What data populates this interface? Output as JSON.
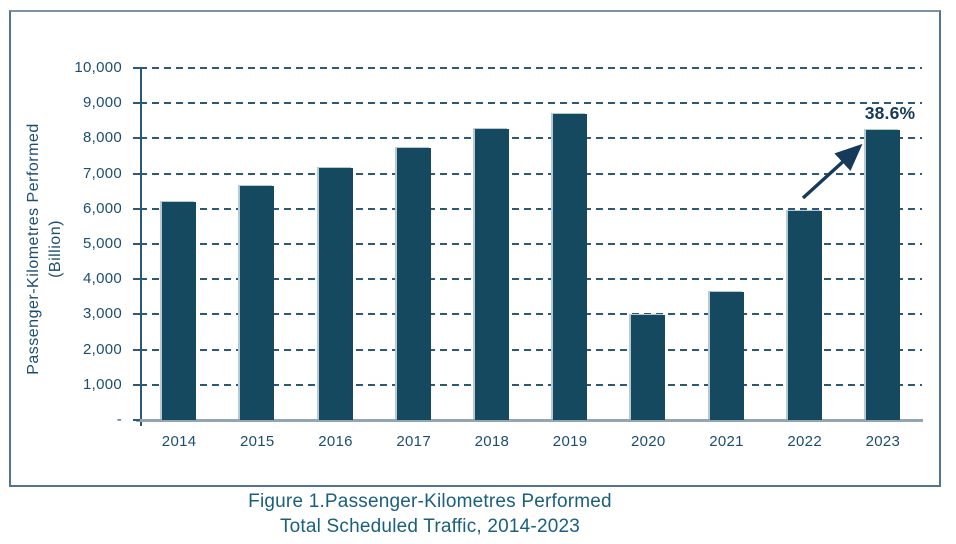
{
  "figure": {
    "caption_line1": "Figure 1.Passenger-Kilometres Performed",
    "caption_line2": "Total Scheduled Traffic, 2014-2023"
  },
  "y_axis": {
    "title_line1": "Passenger-Kilometres Performed",
    "title_line2": "(Billion)"
  },
  "annotation": {
    "label": "38.6%"
  },
  "colors": {
    "bar": "#15495f",
    "bar_edge_highlight": "#b7c9d3",
    "gridline": "#2d5878",
    "y_axis_line": "#2d5878",
    "x_axis_line": "#92a6b2",
    "axis_text": "#1d4e70",
    "caption_text": "#1a5f7e",
    "annotation": "#153a5a",
    "frame_border": "#527392"
  },
  "chart_data": {
    "type": "bar",
    "title": "Figure 1. Passenger-Kilometres Performed — Total Scheduled Traffic, 2014-2023",
    "categories": [
      "2014",
      "2015",
      "2016",
      "2017",
      "2018",
      "2019",
      "2020",
      "2021",
      "2022",
      "2023"
    ],
    "values": [
      6200,
      6660,
      7150,
      7730,
      8280,
      8680,
      2970,
      3630,
      5950,
      8240
    ],
    "xlabel": "",
    "ylabel": "Passenger-Kilometres Performed (Billion)",
    "ylim": [
      0,
      10000
    ],
    "ytick_step": 1000,
    "ytick_labels": [
      "-",
      "1,000",
      "2,000",
      "3,000",
      "4,000",
      "5,000",
      "6,000",
      "7,000",
      "8,000",
      "9,000",
      "10,000"
    ],
    "grid": "horizontal dashed",
    "legend": "none",
    "annotations": [
      {
        "text": "38.6%",
        "meaning": "increase from 2022 to 2023",
        "arrow_from_category": "2022",
        "arrow_to_category": "2023"
      }
    ]
  }
}
